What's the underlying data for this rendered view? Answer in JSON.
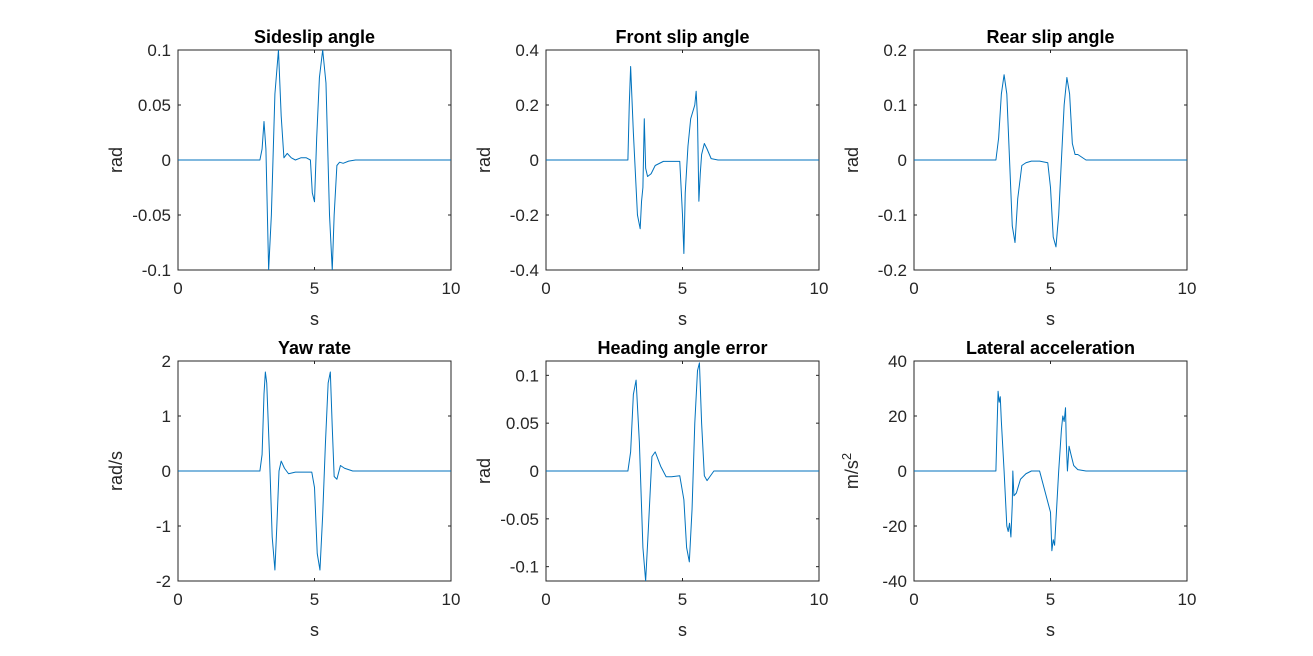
{
  "colors": {
    "background": "#ffffff",
    "axis": "#262626",
    "series": "#0072BD"
  },
  "chart_data": [
    {
      "type": "line",
      "title": "Sideslip angle",
      "xlabel": "s",
      "ylabel": "rad",
      "xlim": [
        0,
        10
      ],
      "ylim": [
        -0.1,
        0.1
      ],
      "xticks": [
        "0",
        "5",
        "10"
      ],
      "yticks": [
        "-0.1",
        "-0.05",
        "0",
        "0.05",
        "0.1"
      ],
      "grid": false,
      "series": [
        {
          "x": [
            0,
            3.0,
            3.08,
            3.15,
            3.22,
            3.32,
            3.42,
            3.55,
            3.68,
            3.78,
            3.88,
            4.0,
            4.15,
            4.3,
            4.5,
            4.7,
            4.85,
            4.92,
            5.0,
            5.08,
            5.18,
            5.3,
            5.42,
            5.55,
            5.65,
            5.72,
            5.82,
            5.92,
            6.05,
            6.25,
            6.5,
            6.8,
            10
          ],
          "y": [
            0,
            0,
            0.01,
            0.035,
            0.01,
            -0.1,
            -0.05,
            0.06,
            0.1,
            0.04,
            0.002,
            0.006,
            0.002,
            0,
            0.002,
            0.002,
            0,
            -0.03,
            -0.038,
            0.02,
            0.075,
            0.1,
            0.07,
            -0.05,
            -0.1,
            -0.05,
            -0.005,
            -0.002,
            -0.003,
            -0.001,
            0,
            0,
            0
          ]
        }
      ]
    },
    {
      "type": "line",
      "title": "Front slip angle",
      "xlabel": "s",
      "ylabel": "rad",
      "xlim": [
        0,
        10
      ],
      "ylim": [
        -0.4,
        0.4
      ],
      "xticks": [
        "0",
        "5",
        "10"
      ],
      "yticks": [
        "-0.4",
        "-0.2",
        "0",
        "0.2",
        "0.4"
      ],
      "grid": false,
      "series": [
        {
          "x": [
            0,
            3.0,
            3.05,
            3.1,
            3.2,
            3.35,
            3.45,
            3.5,
            3.55,
            3.6,
            3.65,
            3.72,
            3.85,
            4.0,
            4.3,
            4.6,
            4.9,
            5.0,
            5.05,
            5.1,
            5.2,
            5.3,
            5.45,
            5.5,
            5.55,
            5.6,
            5.65,
            5.7,
            5.8,
            5.9,
            6.05,
            6.3,
            10
          ],
          "y": [
            0,
            0,
            0.2,
            0.34,
            0.1,
            -0.2,
            -0.25,
            -0.15,
            -0.1,
            0.15,
            -0.03,
            -0.06,
            -0.05,
            -0.02,
            -0.005,
            -0.005,
            -0.005,
            -0.2,
            -0.34,
            -0.12,
            0.05,
            0.15,
            0.2,
            0.25,
            0.15,
            -0.15,
            -0.05,
            0.02,
            0.06,
            0.04,
            0.005,
            0,
            0
          ]
        }
      ]
    },
    {
      "type": "line",
      "title": "Rear slip angle",
      "xlabel": "s",
      "ylabel": "rad",
      "xlim": [
        0,
        10
      ],
      "ylim": [
        -0.2,
        0.2
      ],
      "xticks": [
        "0",
        "5",
        "10"
      ],
      "yticks": [
        "-0.2",
        "-0.1",
        "0",
        "0.1",
        "0.2"
      ],
      "grid": false,
      "series": [
        {
          "x": [
            0,
            3.0,
            3.1,
            3.2,
            3.3,
            3.4,
            3.5,
            3.6,
            3.7,
            3.8,
            3.95,
            4.1,
            4.3,
            4.6,
            4.9,
            5.0,
            5.1,
            5.2,
            5.3,
            5.4,
            5.5,
            5.6,
            5.7,
            5.8,
            5.9,
            6.0,
            6.15,
            6.3,
            6.5,
            10
          ],
          "y": [
            0,
            0,
            0.04,
            0.12,
            0.155,
            0.12,
            0.0,
            -0.12,
            -0.15,
            -0.07,
            -0.01,
            -0.005,
            -0.002,
            -0.002,
            -0.005,
            -0.05,
            -0.14,
            -0.158,
            -0.1,
            0.0,
            0.1,
            0.15,
            0.12,
            0.03,
            0.01,
            0.01,
            0.005,
            0.0,
            0,
            0
          ]
        }
      ]
    },
    {
      "type": "line",
      "title": "Yaw rate",
      "xlabel": "s",
      "ylabel": "rad/s",
      "xlim": [
        0,
        10
      ],
      "ylim": [
        -2,
        2
      ],
      "xticks": [
        "0",
        "5",
        "10"
      ],
      "yticks": [
        "-2",
        "-1",
        "0",
        "1",
        "2"
      ],
      "grid": false,
      "series": [
        {
          "x": [
            0,
            3.0,
            3.08,
            3.15,
            3.2,
            3.25,
            3.35,
            3.45,
            3.55,
            3.62,
            3.7,
            3.78,
            3.9,
            4.05,
            4.3,
            4.6,
            4.9,
            5.0,
            5.1,
            5.2,
            5.3,
            5.4,
            5.5,
            5.58,
            5.65,
            5.72,
            5.82,
            5.95,
            6.1,
            6.4,
            10
          ],
          "y": [
            0,
            0,
            0.3,
            1.4,
            1.8,
            1.6,
            0.3,
            -1.2,
            -1.8,
            -1.0,
            0.0,
            0.18,
            0.05,
            -0.05,
            -0.02,
            -0.02,
            -0.02,
            -0.3,
            -1.5,
            -1.8,
            -0.8,
            0.5,
            1.6,
            1.8,
            0.8,
            -0.1,
            -0.15,
            0.1,
            0.05,
            0,
            0
          ]
        }
      ]
    },
    {
      "type": "line",
      "title": "Heading angle error",
      "xlabel": "s",
      "ylabel": "rad",
      "xlim": [
        0,
        10
      ],
      "ylim": [
        -0.115,
        0.115
      ],
      "xticks": [
        "0",
        "5",
        "10"
      ],
      "yticks": [
        "-0.1",
        "-0.05",
        "0",
        "0.05",
        "0.1"
      ],
      "grid": false,
      "series": [
        {
          "x": [
            0,
            3.0,
            3.1,
            3.2,
            3.3,
            3.42,
            3.55,
            3.65,
            3.75,
            3.88,
            4.0,
            4.2,
            4.4,
            4.6,
            4.9,
            5.05,
            5.15,
            5.25,
            5.35,
            5.45,
            5.55,
            5.62,
            5.7,
            5.8,
            5.9,
            6.0,
            6.15,
            6.4,
            10
          ],
          "y": [
            0,
            0,
            0.02,
            0.08,
            0.095,
            0.03,
            -0.08,
            -0.115,
            -0.06,
            0.015,
            0.02,
            0.005,
            -0.006,
            -0.006,
            -0.005,
            -0.03,
            -0.08,
            -0.095,
            -0.04,
            0.05,
            0.105,
            0.113,
            0.05,
            -0.005,
            -0.01,
            -0.006,
            0.0,
            0,
            0
          ]
        }
      ]
    },
    {
      "type": "line",
      "title": "Lateral acceleration",
      "xlabel": "s",
      "ylabel": "m/s",
      "ylabel_superscript": "2",
      "xlim": [
        0,
        10
      ],
      "ylim": [
        -40,
        40
      ],
      "xticks": [
        "0",
        "5",
        "10"
      ],
      "yticks": [
        "-40",
        "-20",
        "0",
        "20",
        "40"
      ],
      "grid": false,
      "series": [
        {
          "x": [
            0,
            3.0,
            3.04,
            3.08,
            3.12,
            3.16,
            3.2,
            3.3,
            3.4,
            3.45,
            3.5,
            3.55,
            3.6,
            3.62,
            3.66,
            3.75,
            3.9,
            4.1,
            4.3,
            4.6,
            5.0,
            5.05,
            5.1,
            5.15,
            5.2,
            5.3,
            5.4,
            5.45,
            5.5,
            5.55,
            5.58,
            5.62,
            5.68,
            5.75,
            5.85,
            6.0,
            6.3,
            10
          ],
          "y": [
            0,
            0,
            15,
            29,
            25,
            27,
            18,
            0,
            -20,
            -22,
            -19,
            -24,
            -12,
            0,
            -9,
            -8,
            -3,
            -1,
            0,
            0,
            -15,
            -29,
            -25,
            -27,
            -18,
            0,
            15,
            20,
            18,
            23,
            10,
            0,
            9,
            6,
            2,
            0.5,
            0,
            0
          ]
        }
      ]
    }
  ]
}
